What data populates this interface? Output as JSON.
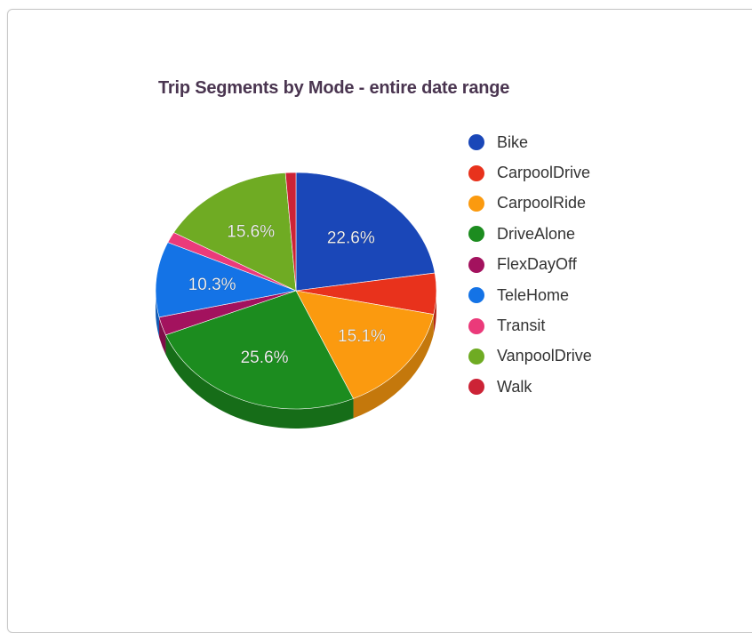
{
  "chart_data": {
    "type": "pie",
    "title": "Trip Segments by Mode - entire date range",
    "categories": [
      "Bike",
      "CarpoolDrive",
      "CarpoolRide",
      "DriveAlone",
      "FlexDayOff",
      "TeleHome",
      "Transit",
      "VanpoolDrive",
      "Walk"
    ],
    "values": [
      22.6,
      5.6,
      15.1,
      25.6,
      2.5,
      10.3,
      1.5,
      15.6,
      1.2
    ],
    "labels": [
      "22.6%",
      "",
      "15.1%",
      "25.6%",
      "",
      "10.3%",
      "",
      "15.6%",
      ""
    ],
    "colors": [
      "#1a47b8",
      "#e8321c",
      "#fb9a0f",
      "#1c8c1f",
      "#a3125e",
      "#1473e6",
      "#eb3a7a",
      "#6fab23",
      "#cc2336"
    ],
    "legend_position": "right",
    "three_d": true
  }
}
